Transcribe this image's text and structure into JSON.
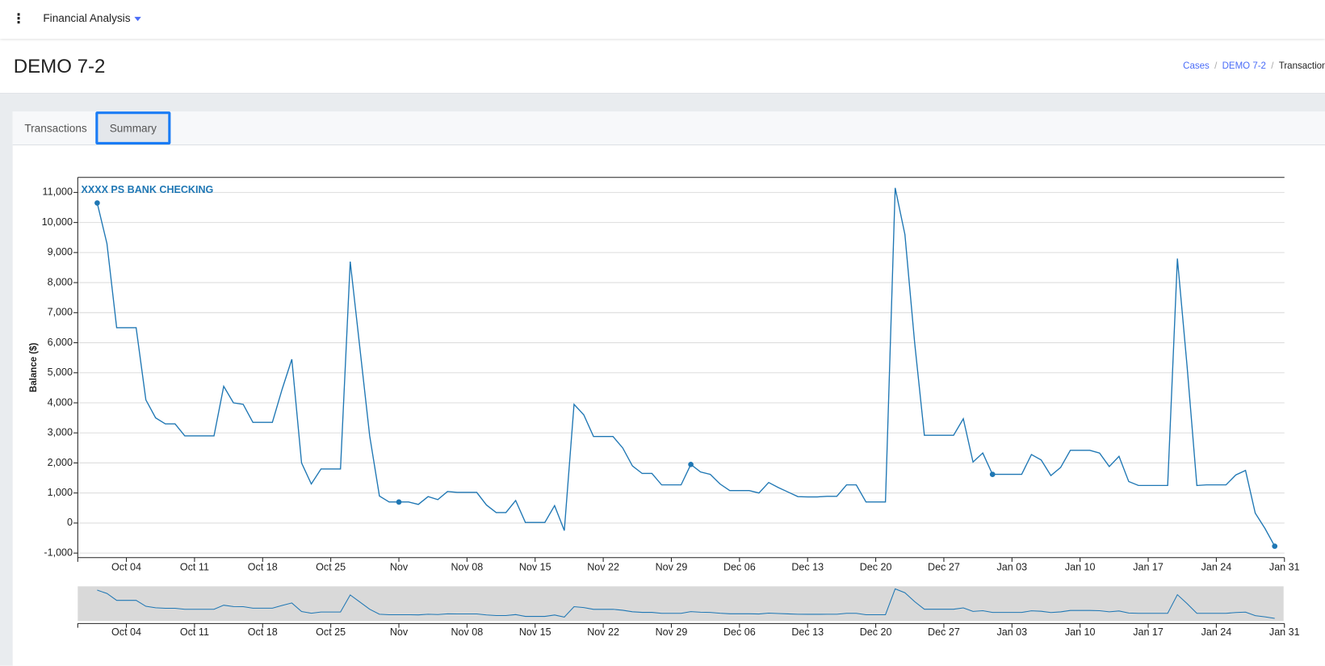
{
  "header": {
    "app": "Financial Analysis",
    "title": "DEMO 7-2",
    "breadcrumb": [
      "Cases",
      "DEMO 7-2",
      "Transactions"
    ]
  },
  "tabs": [
    "Transactions",
    "Summary"
  ],
  "chart_data": {
    "type": "line",
    "y_label": "Balance ($)",
    "x": [
      "Oct 01",
      "Oct 02",
      "Oct 03",
      "Oct 04",
      "Oct 05",
      "Oct 06",
      "Oct 07",
      "Oct 08",
      "Oct 09",
      "Oct 10",
      "Oct 11",
      "Oct 12",
      "Oct 13",
      "Oct 14",
      "Oct 15",
      "Oct 16",
      "Oct 17",
      "Oct 18",
      "Oct 19",
      "Oct 20",
      "Oct 21",
      "Oct 22",
      "Oct 23",
      "Oct 24",
      "Oct 25",
      "Oct 26",
      "Oct 27",
      "Oct 28",
      "Oct 29",
      "Oct 30",
      "Oct 31",
      "Nov 01",
      "Nov 02",
      "Nov 03",
      "Nov 04",
      "Nov 05",
      "Nov 06",
      "Nov 07",
      "Nov 08",
      "Nov 09",
      "Nov 10",
      "Nov 11",
      "Nov 12",
      "Nov 13",
      "Nov 14",
      "Nov 15",
      "Nov 16",
      "Nov 17",
      "Nov 18",
      "Nov 19",
      "Nov 20",
      "Nov 21",
      "Nov 22",
      "Nov 23",
      "Nov 24",
      "Nov 25",
      "Nov 26",
      "Nov 27",
      "Nov 28",
      "Nov 29",
      "Nov 30",
      "Dec 01",
      "Dec 02",
      "Dec 03",
      "Dec 04",
      "Dec 05",
      "Dec 06",
      "Dec 07",
      "Dec 08",
      "Dec 09",
      "Dec 10",
      "Dec 11",
      "Dec 12",
      "Dec 13",
      "Dec 14",
      "Dec 15",
      "Dec 16",
      "Dec 17",
      "Dec 18",
      "Dec 19",
      "Dec 20",
      "Dec 21",
      "Dec 22",
      "Dec 23",
      "Dec 24",
      "Dec 25",
      "Dec 26",
      "Dec 27",
      "Dec 28",
      "Dec 29",
      "Dec 30",
      "Dec 31",
      "Jan 01",
      "Jan 02",
      "Jan 03",
      "Jan 04",
      "Jan 05",
      "Jan 06",
      "Jan 07",
      "Jan 08",
      "Jan 09",
      "Jan 10",
      "Jan 11",
      "Jan 12",
      "Jan 13",
      "Jan 14",
      "Jan 15",
      "Jan 16",
      "Jan 17",
      "Jan 18",
      "Jan 19",
      "Jan 20",
      "Jan 21",
      "Jan 22",
      "Jan 23",
      "Jan 24",
      "Jan 25",
      "Jan 26",
      "Jan 27",
      "Jan 28",
      "Jan 29",
      "Jan 30"
    ],
    "series": [
      {
        "name": "XXXX PS BANK CHECKING",
        "color": "#1f77b4",
        "values": [
          10650,
          9300,
          6500,
          6500,
          6500,
          4100,
          3500,
          3300,
          3300,
          2900,
          2900,
          2900,
          2900,
          4550,
          4000,
          3950,
          3350,
          3350,
          3350,
          4450,
          5450,
          2000,
          1300,
          1800,
          1800,
          1800,
          8700,
          5800,
          2900,
          900,
          700,
          700,
          700,
          620,
          880,
          780,
          1050,
          1020,
          1020,
          1020,
          600,
          350,
          350,
          750,
          20,
          20,
          20,
          580,
          -250,
          3950,
          3600,
          2880,
          2880,
          2880,
          2500,
          1900,
          1650,
          1650,
          1270,
          1270,
          1270,
          1950,
          1700,
          1620,
          1300,
          1080,
          1080,
          1080,
          1000,
          1350,
          1180,
          1030,
          880,
          870,
          870,
          890,
          890,
          1270,
          1270,
          700,
          700,
          700,
          11150,
          9600,
          6000,
          2920,
          2920,
          2920,
          2920,
          3470,
          2030,
          2330,
          1620,
          1620,
          1620,
          1620,
          2280,
          2100,
          1580,
          1850,
          2420,
          2420,
          2420,
          2330,
          1880,
          2220,
          1380,
          1250,
          1250,
          1250,
          1250,
          8800,
          5200,
          1250,
          1270,
          1270,
          1270,
          1600,
          1750,
          330,
          -180,
          -770
        ]
      }
    ],
    "xlim": [
      "Sep 29",
      "Jan 31"
    ],
    "xticks": [
      "Oct 04",
      "Oct 11",
      "Oct 18",
      "Oct 25",
      {
        "value": "Nov 01",
        "label": "Nov"
      },
      "Nov 08",
      "Nov 15",
      "Nov 22",
      "Nov 29",
      "Dec 06",
      "Dec 13",
      "Dec 20",
      "Dec 27",
      "Jan 03",
      "Jan 10",
      "Jan 17",
      "Jan 24",
      "Jan 31"
    ],
    "ylim": [
      -1150,
      11500
    ],
    "yticks": [
      {
        "value": -1000,
        "label": "-1,000"
      },
      0,
      {
        "value": 1000,
        "label": "1,000"
      },
      {
        "value": 2000,
        "label": "2,000"
      },
      {
        "value": 3000,
        "label": "3,000"
      },
      {
        "value": 4000,
        "label": "4,000"
      },
      {
        "value": 5000,
        "label": "5,000"
      },
      {
        "value": 6000,
        "label": "6,000"
      },
      {
        "value": 7000,
        "label": "7,000"
      },
      {
        "value": 8000,
        "label": "8,000"
      },
      {
        "value": 9000,
        "label": "9,000"
      },
      {
        "value": 10000,
        "label": "10,000"
      },
      {
        "value": 11000,
        "label": "11,000"
      }
    ],
    "grid": true
  }
}
